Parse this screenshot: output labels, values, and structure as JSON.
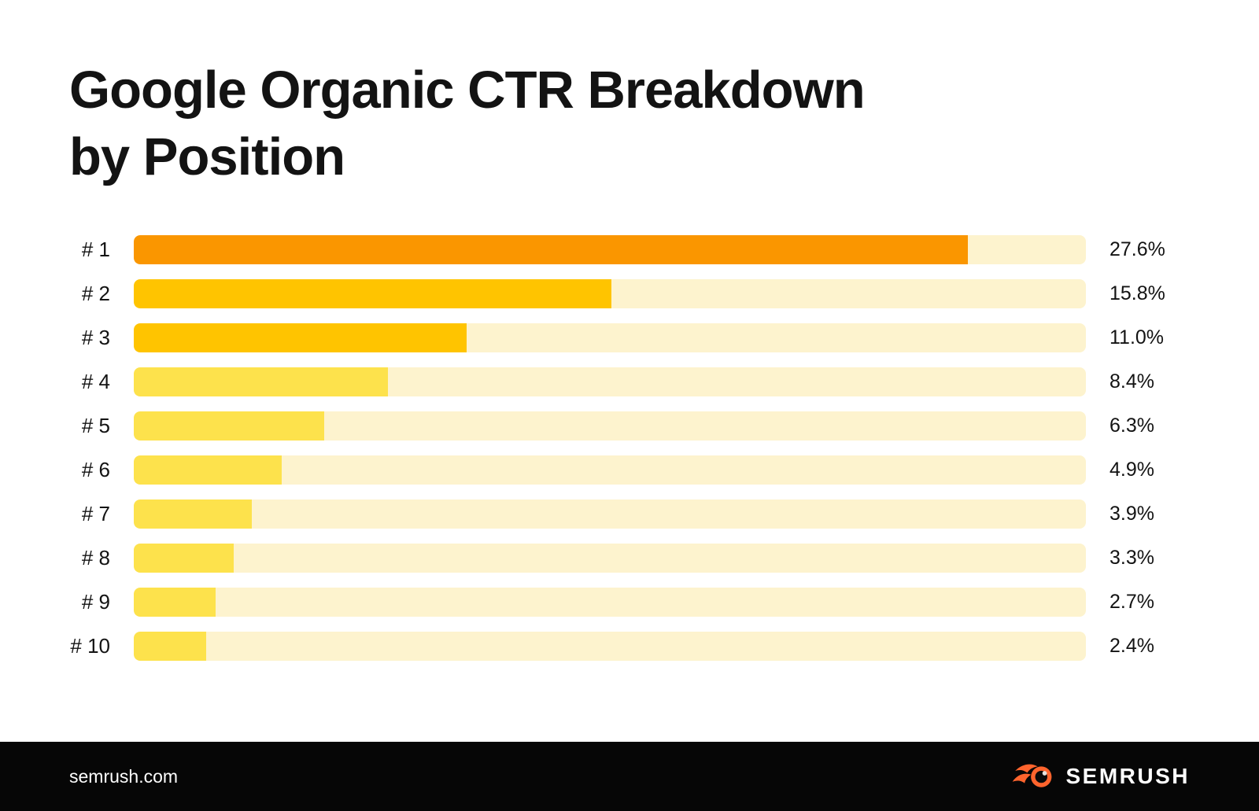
{
  "title": {
    "line1": "Google Organic CTR Breakdown",
    "line2": "by Position"
  },
  "chart_data": {
    "type": "bar",
    "orientation": "horizontal",
    "title": "Google Organic CTR Breakdown by Position",
    "categories": [
      "# 1",
      "# 2",
      "# 3",
      "# 4",
      "# 5",
      "# 6",
      "# 7",
      "# 8",
      "# 9",
      "# 10"
    ],
    "values": [
      27.6,
      15.8,
      11.0,
      8.4,
      6.3,
      4.9,
      3.9,
      3.3,
      2.7,
      2.4
    ],
    "value_labels": [
      "27.6%",
      "15.8%",
      "11.0%",
      "8.4%",
      "6.3%",
      "4.9%",
      "3.9%",
      "3.3%",
      "2.7%",
      "2.4%"
    ],
    "xlabel": "",
    "ylabel": "",
    "xlim": [
      0,
      31.5
    ],
    "grid": false,
    "legend": false,
    "bar_colors": [
      "#FA9600",
      "#FFC400",
      "#FFC400",
      "#FDE24C",
      "#FDE24C",
      "#FDE24C",
      "#FDE24C",
      "#FDE24C",
      "#FDE24C",
      "#FDE24C"
    ],
    "track_color": "#FDF3CE",
    "label_color": "#131313"
  },
  "footer": {
    "site": "semrush.com",
    "brand": "SEMRUSH",
    "background": "#060606",
    "logo_color": "#FF642D"
  }
}
